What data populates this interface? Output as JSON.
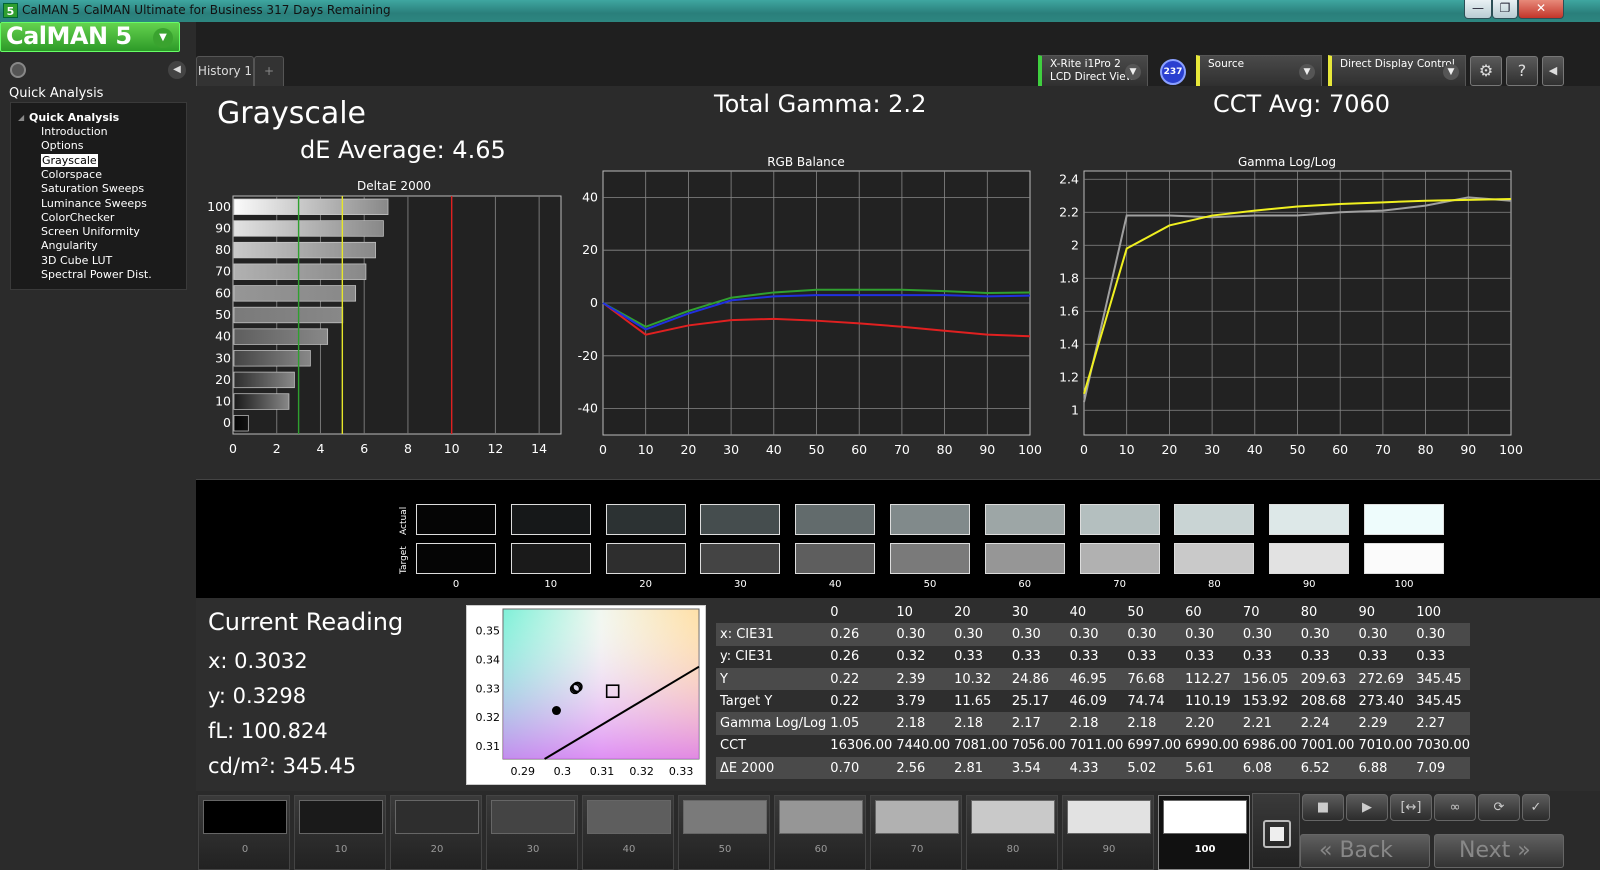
{
  "window": {
    "icon_glyph": "5",
    "title": "CalMAN 5 CalMAN Ultimate for Business 317 Days Remaining",
    "buttons": [
      "—",
      "❐",
      "✕"
    ]
  },
  "sidebar": {
    "logo": "CalMAN 5",
    "section_title": "Quick Analysis",
    "tree_root": "Quick Analysis",
    "items": [
      "Introduction",
      "Options",
      "Grayscale",
      "Colorspace",
      "Saturation Sweeps",
      "Luminance Sweeps",
      "ColorChecker",
      "Screen Uniformity",
      "Angularity",
      "3D Cube LUT",
      "Spectral Power Dist."
    ],
    "selected_index": 2
  },
  "tabs": {
    "history_label": "History 1",
    "add_label": "+"
  },
  "toolbar": {
    "meter_line1": "X-Rite i1Pro 2",
    "meter_line2": "LCD Direct View",
    "meter_badge": "237",
    "source_label": "Source",
    "display_label": "Direct Display Control",
    "icons": [
      "gear-icon",
      "help-icon",
      "collapse-icon"
    ],
    "accent_yellow": "#e8e83a",
    "accent_green": "#3fcf3f"
  },
  "summary": {
    "title": "Grayscale",
    "de_average": "dE Average: 4.65",
    "total_gamma": "Total Gamma: 2.2",
    "cct_avg": "CCT Avg: 7060"
  },
  "chart_data": [
    {
      "type": "bar",
      "title": "DeltaE 2000",
      "orientation": "horizontal",
      "categories": [
        "0",
        "10",
        "20",
        "30",
        "40",
        "50",
        "60",
        "70",
        "80",
        "90",
        "100"
      ],
      "values": [
        0.7,
        2.56,
        2.81,
        3.54,
        4.33,
        5.02,
        5.61,
        6.08,
        6.52,
        6.88,
        7.09
      ],
      "xlim": [
        0,
        15
      ],
      "xticks": [
        0,
        2,
        4,
        6,
        8,
        10,
        12,
        14
      ],
      "reference_lines": [
        {
          "value": 3,
          "color": "#2fa02f"
        },
        {
          "value": 5,
          "color": "#e6e62a"
        },
        {
          "value": 10,
          "color": "#e02020"
        }
      ]
    },
    {
      "type": "line",
      "title": "RGB Balance",
      "x": [
        0,
        10,
        20,
        30,
        40,
        50,
        60,
        70,
        80,
        90,
        100
      ],
      "ylim": [
        -50,
        50
      ],
      "yticks": [
        40,
        20,
        0,
        -20,
        -40
      ],
      "xticks": [
        0,
        10,
        20,
        30,
        40,
        50,
        60,
        70,
        80,
        90,
        100
      ],
      "series": [
        {
          "color": "#e02020",
          "values": [
            0,
            -12,
            -8.5,
            -6.5,
            -6,
            -6.7,
            -7.7,
            -9,
            -10.5,
            -12,
            -12.6
          ]
        },
        {
          "color": "#30a030",
          "values": [
            0,
            -9,
            -3,
            2,
            4,
            5,
            5,
            5,
            4.5,
            3.8,
            4
          ]
        },
        {
          "color": "#2030e0",
          "values": [
            0,
            -10,
            -4,
            1,
            2.5,
            3,
            3,
            3,
            3,
            2.5,
            2.8
          ]
        }
      ]
    },
    {
      "type": "line",
      "title": "Gamma Log/Log",
      "x": [
        0,
        10,
        20,
        30,
        40,
        50,
        60,
        70,
        80,
        90,
        100
      ],
      "ylim": [
        0.85,
        2.45
      ],
      "yticks": [
        2.4,
        2.2,
        2,
        1.8,
        1.6,
        1.4,
        1.2,
        1
      ],
      "xticks": [
        0,
        10,
        20,
        30,
        40,
        50,
        60,
        70,
        80,
        90,
        100
      ],
      "series": [
        {
          "color": "#a0a0a0",
          "values": [
            1.05,
            2.18,
            2.18,
            2.17,
            2.18,
            2.18,
            2.2,
            2.21,
            2.24,
            2.29,
            2.27
          ]
        },
        {
          "color": "#f0f020",
          "values": [
            1.1,
            1.98,
            2.12,
            2.18,
            2.21,
            2.235,
            2.25,
            2.26,
            2.27,
            2.275,
            2.28
          ]
        }
      ]
    }
  ],
  "swatches": {
    "actual_label": "Actual",
    "target_label": "Target",
    "levels": [
      "0",
      "10",
      "20",
      "30",
      "40",
      "50",
      "60",
      "70",
      "80",
      "90",
      "100"
    ],
    "actual_colors": [
      "#050505",
      "#161819",
      "#2c3233",
      "#454d4e",
      "#626b6c",
      "#818a8b",
      "#9da6a6",
      "#b4bfbf",
      "#c9d4d4",
      "#dde8e8",
      "#eefcfc"
    ],
    "target_colors": [
      "#050505",
      "#1a1a1a",
      "#2e2e2e",
      "#444444",
      "#5e5e5e",
      "#7a7a7a",
      "#969696",
      "#b1b1b1",
      "#c9c9c9",
      "#e2e2e2",
      "#fbfbfb"
    ]
  },
  "reading": {
    "title": "Current Reading",
    "x": "x: 0.3032",
    "y": "y: 0.3298",
    "fl": "fL: 100.824",
    "cdm2": "cd/m²: 345.45"
  },
  "cie_plot": {
    "xlim": [
      0.285,
      0.3345
    ],
    "ylim": [
      0.3055,
      0.3575
    ],
    "xticks": [
      "0.29",
      "0.3",
      "0.31",
      "0.32",
      "0.33"
    ],
    "yticks": [
      "0.35",
      "0.34",
      "0.33",
      "0.32",
      "0.31"
    ],
    "target_point": [
      0.3127,
      0.329
    ],
    "measured_points": [
      [
        0.3032,
        0.3298
      ],
      [
        0.3035,
        0.3302
      ],
      [
        0.3038,
        0.3305
      ]
    ],
    "dot_point": [
      0.2985,
      0.3223
    ],
    "curve_start": [
      0.2955,
      0.3055
    ],
    "curve_end": [
      0.3345,
      0.3375
    ]
  },
  "table": {
    "columns": [
      "",
      "0",
      "10",
      "20",
      "30",
      "40",
      "50",
      "60",
      "70",
      "80",
      "90",
      "100"
    ],
    "rows": [
      [
        "x: CIE31",
        "0.26",
        "0.30",
        "0.30",
        "0.30",
        "0.30",
        "0.30",
        "0.30",
        "0.30",
        "0.30",
        "0.30",
        "0.30"
      ],
      [
        "y: CIE31",
        "0.26",
        "0.32",
        "0.33",
        "0.33",
        "0.33",
        "0.33",
        "0.33",
        "0.33",
        "0.33",
        "0.33",
        "0.33"
      ],
      [
        "Y",
        "0.22",
        "2.39",
        "10.32",
        "24.86",
        "46.95",
        "76.68",
        "112.27",
        "156.05",
        "209.63",
        "272.69",
        "345.45"
      ],
      [
        "Target Y",
        "0.22",
        "3.79",
        "11.65",
        "25.17",
        "46.09",
        "74.74",
        "110.19",
        "153.92",
        "208.68",
        "273.40",
        "345.45"
      ],
      [
        "Gamma Log/Log",
        "1.05",
        "2.18",
        "2.18",
        "2.17",
        "2.18",
        "2.18",
        "2.20",
        "2.21",
        "2.24",
        "2.29",
        "2.27"
      ],
      [
        "CCT",
        "16306.00",
        "7440.00",
        "7081.00",
        "7056.00",
        "7011.00",
        "6997.00",
        "6990.00",
        "6986.00",
        "7001.00",
        "7010.00",
        "7030.00"
      ],
      [
        "ΔE 2000",
        "0.70",
        "2.56",
        "2.81",
        "3.54",
        "4.33",
        "5.02",
        "5.61",
        "6.08",
        "6.52",
        "6.88",
        "7.09"
      ]
    ]
  },
  "strip": {
    "labels": [
      "0",
      "10",
      "20",
      "30",
      "40",
      "50",
      "60",
      "70",
      "80",
      "90",
      "100"
    ],
    "colors": [
      "#000000",
      "#1a1a1a",
      "#2e2e2e",
      "#444444",
      "#5e5e5e",
      "#7a7a7a",
      "#969696",
      "#b1b1b1",
      "#c9c9c9",
      "#e2e2e2",
      "#ffffff"
    ],
    "selected_index": 10
  },
  "controls": {
    "back_label": "Back",
    "next_label": "Next",
    "icons": [
      "stop-icon",
      "play-icon",
      "range-icon",
      "loop-icon",
      "refresh-icon",
      "check-icon"
    ]
  }
}
